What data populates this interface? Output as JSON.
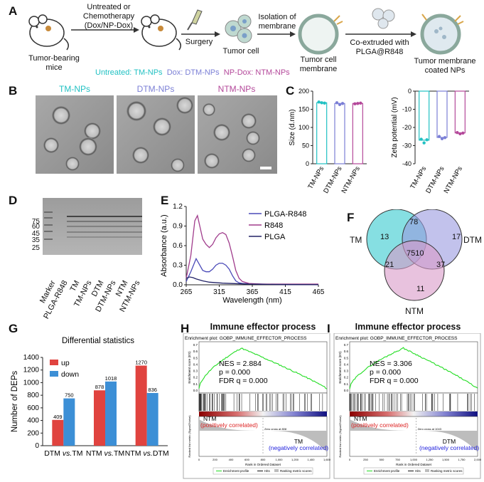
{
  "panel_a": {
    "label": "A",
    "mouse1_label": "Tumor-bearing\nmice",
    "treat_label": "Untreated or\nChemotherapy\n(Dox/NP-Dox)",
    "surgery_label": "Surgery",
    "tumor_cell_label": "Tumor cell",
    "isolation_label": "Isolation of\nmembrane",
    "membrane_label": "Tumor cell\nmembrane",
    "coextrude_label": "Co-extruded with\nPLGA@R848",
    "final_label": "Tumor membrane\ncoated NPs",
    "groups": [
      {
        "text": "Untreated: TM-NPs",
        "color": "#22c1c3"
      },
      {
        "text": "Dox: DTM-NPs",
        "color": "#7b7fd6"
      },
      {
        "text": "NP-Dox: NTM-NPs",
        "color": "#b4489a"
      }
    ]
  },
  "panel_b": {
    "label": "B",
    "titles": [
      {
        "text": "TM-NPs",
        "color": "#22c1c3"
      },
      {
        "text": "DTM-NPs",
        "color": "#7b7fd6"
      },
      {
        "text": "NTM-NPs",
        "color": "#b4489a"
      }
    ]
  },
  "panel_c": {
    "label": "C",
    "chart_data": [
      {
        "type": "bar",
        "ylabel": "Size (d.nm)",
        "categories": [
          "TM-NPs",
          "DTM-NPs",
          "NTM-NPs"
        ],
        "values": [
          168,
          166,
          166
        ],
        "points": [
          [
            170,
            168,
            167
          ],
          [
            168,
            163,
            166
          ],
          [
            165,
            166,
            167
          ]
        ],
        "ylim": [
          0,
          200
        ],
        "yticks": [
          0,
          50,
          100,
          150,
          200
        ],
        "colors": [
          "#22c1c3",
          "#7b7fd6",
          "#b4489a"
        ]
      },
      {
        "type": "bar",
        "ylabel": "Zeta potential (mV)",
        "categories": [
          "TM-NPs",
          "DTM-NPs",
          "NTM-NPs"
        ],
        "values": [
          -27,
          -25.5,
          -23
        ],
        "points": [
          [
            -26.5,
            -28.5,
            -26.8
          ],
          [
            -25,
            -26.2,
            -25.6
          ],
          [
            -22.8,
            -23.5,
            -23.1
          ]
        ],
        "ylim": [
          -40,
          0
        ],
        "yticks": [
          0,
          -10,
          -20,
          -30,
          -40
        ],
        "colors": [
          "#22c1c3",
          "#7b7fd6",
          "#b4489a"
        ]
      }
    ]
  },
  "panel_d": {
    "label": "D",
    "markers": [
      "75",
      "60",
      "45",
      "35",
      "25"
    ],
    "lanes": [
      "Marker",
      "PLGA-R848",
      "TM",
      "TM-NPs",
      "DTM",
      "DTM-NPs",
      "NTM",
      "NTM-NPs"
    ]
  },
  "panel_e": {
    "label": "E",
    "chart_data": {
      "type": "line",
      "xlabel": "Wavelength (nm)",
      "ylabel": "Absorbance (a.u.)",
      "xlim": [
        265,
        465
      ],
      "ylim": [
        0,
        1.2
      ],
      "xticks": [
        265,
        315,
        365,
        415,
        465
      ],
      "yticks": [
        0.0,
        0.3,
        0.6,
        0.9,
        1.2
      ],
      "series": [
        {
          "name": "PLGA-R848",
          "color": "#4a4ab8",
          "x": [
            265,
            272,
            280,
            285,
            290,
            295,
            300,
            305,
            310,
            315,
            320,
            325,
            330,
            335,
            340,
            345,
            350,
            360,
            380,
            420,
            465
          ],
          "y": [
            0.05,
            0.2,
            0.4,
            0.31,
            0.22,
            0.2,
            0.2,
            0.24,
            0.3,
            0.33,
            0.33,
            0.3,
            0.24,
            0.14,
            0.06,
            0.03,
            0.02,
            0.015,
            0.01,
            0.005,
            0.005
          ]
        },
        {
          "name": "R848",
          "color": "#a03c8c",
          "x": [
            265,
            272,
            278,
            282,
            286,
            290,
            295,
            300,
            305,
            310,
            315,
            320,
            325,
            330,
            335,
            340,
            345,
            350,
            360,
            380,
            420,
            465
          ],
          "y": [
            0.1,
            0.45,
            0.98,
            1.06,
            0.88,
            0.7,
            0.62,
            0.57,
            0.62,
            0.72,
            0.78,
            0.8,
            0.77,
            0.64,
            0.44,
            0.22,
            0.1,
            0.05,
            0.02,
            0.01,
            0.01,
            0.01
          ]
        },
        {
          "name": "PLGA",
          "color": "#222266",
          "x": [
            265,
            270,
            275,
            280,
            290,
            300,
            320,
            360,
            400,
            465
          ],
          "y": [
            0.1,
            0.12,
            0.11,
            0.09,
            0.06,
            0.04,
            0.025,
            0.01,
            0.005,
            0.002
          ]
        }
      ]
    }
  },
  "panel_f": {
    "label": "F",
    "chart_data": {
      "type": "venn",
      "sets": [
        "TM",
        "DTM",
        "NTM"
      ],
      "regions": {
        "TM_only": "13",
        "DTM_only": "17",
        "NTM_only": "11",
        "TM_DTM": "78",
        "TM_NTM": "21",
        "DTM_NTM": "37",
        "all": "7510"
      }
    }
  },
  "panel_g": {
    "label": "G",
    "chart_data": {
      "type": "bar",
      "title": "Differential statistics",
      "ylabel": "Number of DEPs",
      "categories": [
        "DTM vs.TM",
        "NTM vs.TM",
        "NTM vs.DTM"
      ],
      "category_parts": [
        [
          "DTM ",
          "vs.",
          "TM"
        ],
        [
          "NTM ",
          "vs.",
          "TM"
        ],
        [
          "NTM ",
          "vs.",
          "DTM"
        ]
      ],
      "ylim": [
        0,
        1400
      ],
      "yticks": [
        0,
        200,
        400,
        600,
        800,
        1000,
        1200,
        1400
      ],
      "series": [
        {
          "name": "up",
          "color": "#e0433f",
          "values": [
            409,
            878,
            1270
          ]
        },
        {
          "name": "down",
          "color": "#3c8fd6",
          "values": [
            750,
            1018,
            836
          ]
        }
      ]
    }
  },
  "panel_h": {
    "label": "H",
    "title": "Immune effector process",
    "plot_title": "Enrichment plot: GOBP_IMMUNE_EFFECTOR_PROCESS",
    "es_label": "Enrichment score (ES)",
    "rank_label": "Ranked list metric (Signal2Noise)",
    "x_label": "Rank in Ordered Dataset",
    "nes": "NES = 2.884",
    "p": "p = 0.000",
    "fdr": "FDR q = 0.000",
    "pos_name": "NTM",
    "pos_desc": "(positively correlated)",
    "neg_name": "TM",
    "neg_desc": "(negatively correlated)",
    "zero_cross": "Zero cross at 808",
    "legend": [
      "Enrichment profile",
      "Hits",
      "Ranking metric scores"
    ],
    "xticks": [
      "0",
      "200",
      "400",
      "600",
      "800",
      "1,000",
      "1,200",
      "1,400",
      "1,600"
    ],
    "es_yticks": [
      "0.7",
      "0.6",
      "0.5",
      "0.4",
      "0.3",
      "0.2",
      "0.1",
      "0.0"
    ]
  },
  "panel_i": {
    "label": "I",
    "title": "Immune effector process",
    "plot_title": "Enrichment plot: GOBP_IMMUNE_EFFECTOR_PROCESS",
    "es_label": "Enrichment score (ES)",
    "rank_label": "Ranked list metric (Signal2Noise)",
    "x_label": "Rank in Ordered Dataset",
    "nes": "NES = 3.306",
    "p": "p = 0.000",
    "fdr": "FDR q = 0.000",
    "pos_name": "NTM",
    "pos_desc": "(positively correlated)",
    "neg_name": "DTM",
    "neg_desc": "(negatively correlated)",
    "zero_cross": "Zero cross at 1043",
    "legend": [
      "Enrichment profile",
      "Hits",
      "Ranking metric scores"
    ],
    "xticks": [
      "0",
      "250",
      "500",
      "750",
      "1,000",
      "1,250",
      "1,500",
      "1,750",
      "2,000"
    ],
    "es_yticks": [
      "0.7",
      "0.6",
      "0.5",
      "0.4",
      "0.3",
      "0.2",
      "0.1",
      "0.0"
    ]
  }
}
